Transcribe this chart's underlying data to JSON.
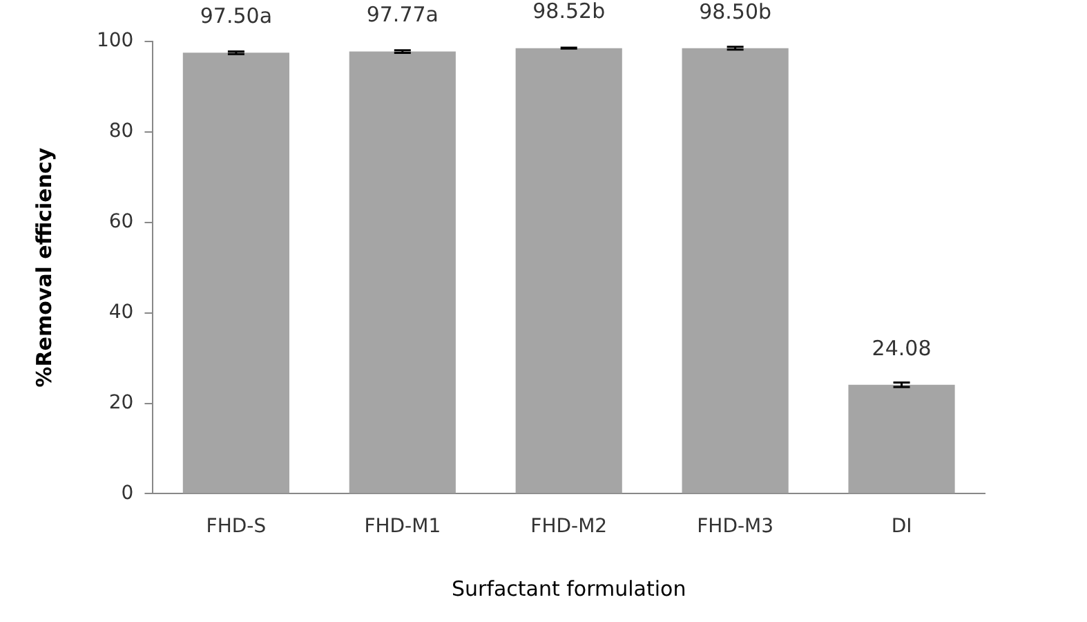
{
  "chart_data": {
    "type": "bar",
    "categories": [
      "FHD-S",
      "FHD-M1",
      "FHD-M2",
      "FHD-M3",
      "DI"
    ],
    "values": [
      97.5,
      97.77,
      98.52,
      98.5,
      24.08
    ],
    "value_labels": [
      "97.50a",
      "97.77a",
      "98.52b",
      "98.50b",
      "24.08"
    ],
    "errors": [
      0.3,
      0.3,
      0.1,
      0.3,
      0.5
    ],
    "color": "#a5a5a5",
    "xlabel": "Surfactant formulation",
    "ylabel": "%Removal efficiency",
    "ylim": [
      0,
      100
    ],
    "yticks": [
      0,
      20,
      40,
      60,
      80,
      100
    ],
    "grid": false,
    "legend": false
  }
}
